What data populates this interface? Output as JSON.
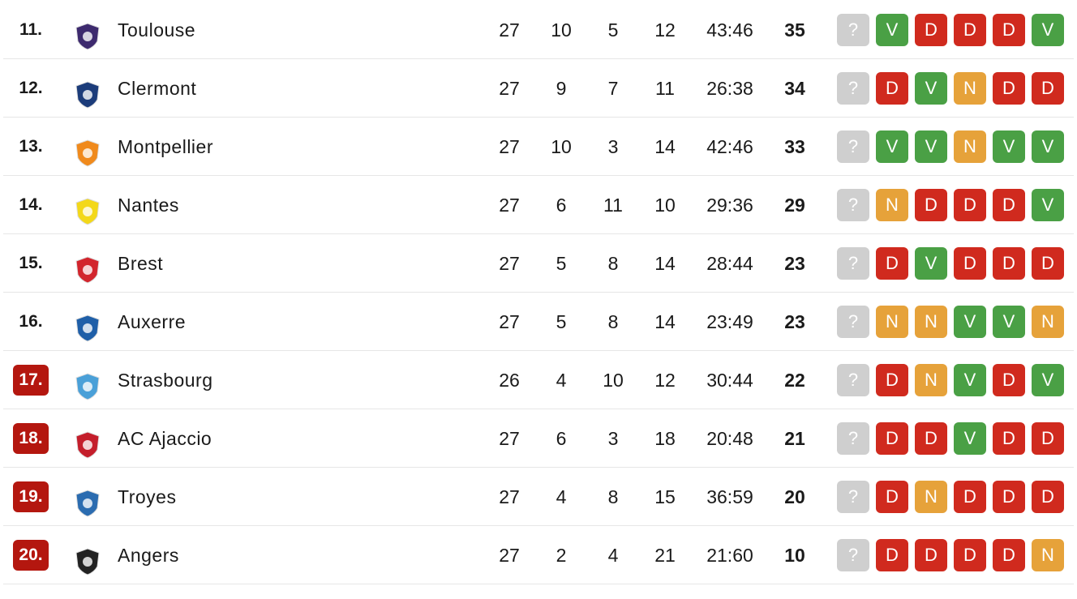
{
  "table": {
    "form_colors": {
      "?": "#cfcfcf",
      "V": "#4aa045",
      "D": "#d02a1e",
      "N": "#e6a23a"
    },
    "rows": [
      {
        "rank": "11.",
        "team": "Toulouse",
        "played": 27,
        "wins": 10,
        "draws": 5,
        "losses": 12,
        "goals": "43:46",
        "points": 35,
        "form": [
          "?",
          "V",
          "D",
          "D",
          "D",
          "V"
        ]
      },
      {
        "rank": "12.",
        "team": "Clermont",
        "played": 27,
        "wins": 9,
        "draws": 7,
        "losses": 11,
        "goals": "26:38",
        "points": 34,
        "form": [
          "?",
          "D",
          "V",
          "N",
          "D",
          "D"
        ]
      },
      {
        "rank": "13.",
        "team": "Montpellier",
        "played": 27,
        "wins": 10,
        "draws": 3,
        "losses": 14,
        "goals": "42:46",
        "points": 33,
        "form": [
          "?",
          "V",
          "V",
          "N",
          "V",
          "V"
        ]
      },
      {
        "rank": "14.",
        "team": "Nantes",
        "played": 27,
        "wins": 6,
        "draws": 11,
        "losses": 10,
        "goals": "29:36",
        "points": 29,
        "form": [
          "?",
          "N",
          "D",
          "D",
          "D",
          "V"
        ]
      },
      {
        "rank": "15.",
        "team": "Brest",
        "played": 27,
        "wins": 5,
        "draws": 8,
        "losses": 14,
        "goals": "28:44",
        "points": 23,
        "form": [
          "?",
          "D",
          "V",
          "D",
          "D",
          "D"
        ]
      },
      {
        "rank": "16.",
        "team": "Auxerre",
        "played": 27,
        "wins": 5,
        "draws": 8,
        "losses": 14,
        "goals": "23:49",
        "points": 23,
        "form": [
          "?",
          "N",
          "N",
          "V",
          "V",
          "N"
        ]
      },
      {
        "rank": "17.",
        "team": "Strasbourg",
        "played": 26,
        "wins": 4,
        "draws": 10,
        "losses": 12,
        "goals": "30:44",
        "points": 22,
        "form": [
          "?",
          "D",
          "N",
          "V",
          "D",
          "V"
        ],
        "relegation": true
      },
      {
        "rank": "18.",
        "team": "AC Ajaccio",
        "played": 27,
        "wins": 6,
        "draws": 3,
        "losses": 18,
        "goals": "20:48",
        "points": 21,
        "form": [
          "?",
          "D",
          "D",
          "V",
          "D",
          "D"
        ],
        "relegation": true
      },
      {
        "rank": "19.",
        "team": "Troyes",
        "played": 27,
        "wins": 4,
        "draws": 8,
        "losses": 15,
        "goals": "36:59",
        "points": 20,
        "form": [
          "?",
          "D",
          "N",
          "D",
          "D",
          "D"
        ],
        "relegation": true
      },
      {
        "rank": "20.",
        "team": "Angers",
        "played": 27,
        "wins": 2,
        "draws": 4,
        "losses": 21,
        "goals": "21:60",
        "points": 10,
        "form": [
          "?",
          "D",
          "D",
          "D",
          "D",
          "N"
        ],
        "relegation": true
      }
    ]
  }
}
